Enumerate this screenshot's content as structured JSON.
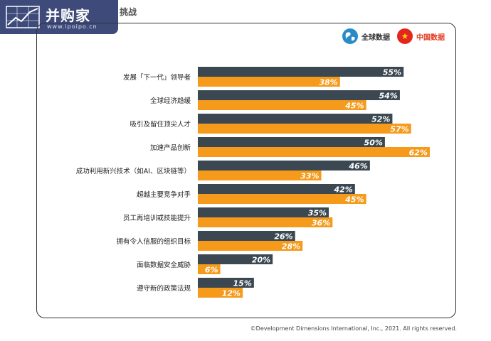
{
  "logo": {
    "text": "并购家",
    "url": "www.ipoipo.cn"
  },
  "title_fragment": "挑战",
  "legend": {
    "global": "全球数据",
    "china": "中国数据"
  },
  "colors": {
    "global": "#3b4852",
    "china": "#f59a1b",
    "china_text": "#e23a1f"
  },
  "chart_data": {
    "type": "bar",
    "orientation": "horizontal",
    "categories": [
      "发展「下一代」领导者",
      "全球经济趋缓",
      "吸引及留住顶尖人才",
      "加速产品创新",
      "成功利用新兴技术（如AI、区块链等）",
      "超越主要竞争对手",
      "员工再培训或技能提升",
      "拥有令人信服的组织目标",
      "面临数据安全威胁",
      "遵守新的政策法规"
    ],
    "series": [
      {
        "name": "全球数据",
        "values": [
          55,
          54,
          52,
          50,
          46,
          42,
          35,
          26,
          20,
          15
        ]
      },
      {
        "name": "中国数据",
        "values": [
          38,
          45,
          57,
          62,
          33,
          45,
          36,
          28,
          6,
          12
        ]
      }
    ],
    "value_suffix": "%",
    "xlim": [
      0,
      62
    ]
  },
  "copyright": "©Development Dimensions International, Inc., 2021. All rights reserved."
}
